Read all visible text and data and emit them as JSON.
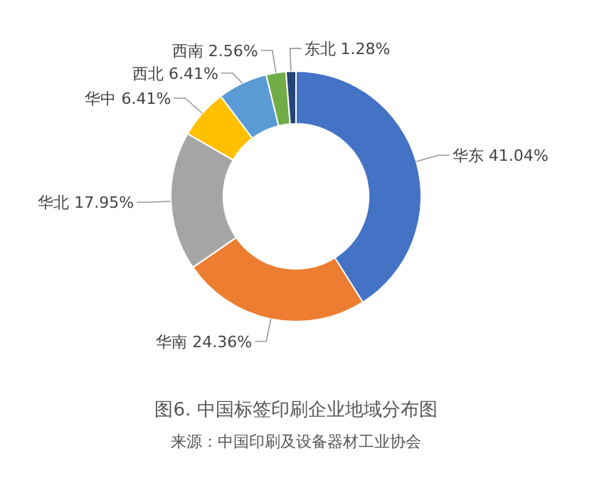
{
  "chart_data": {
    "type": "donut",
    "title": "图6. 中国标签印刷企业地域分布图",
    "annotations": [
      "来源：中国印刷及设备器材工业协会"
    ],
    "categories": [
      "华东",
      "华南",
      "华北",
      "华中",
      "西北",
      "西南",
      "东北"
    ],
    "values": [
      41.04,
      24.36,
      17.95,
      6.41,
      6.41,
      2.56,
      1.28
    ],
    "colors": [
      "#4472c4",
      "#ed7d31",
      "#a5a5a5",
      "#ffc000",
      "#5b9bd5",
      "#70ad47",
      "#264478"
    ],
    "value_labels": [
      "41.04%",
      "24.36%",
      "17.95%",
      "6.41%",
      "6.41%",
      "2.56%",
      "1.28%"
    ]
  }
}
